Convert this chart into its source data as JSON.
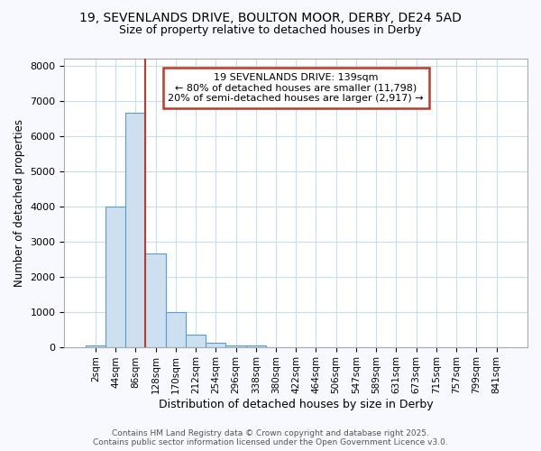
{
  "title_line1": "19, SEVENLANDS DRIVE, BOULTON MOOR, DERBY, DE24 5AD",
  "title_line2": "Size of property relative to detached houses in Derby",
  "xlabel": "Distribution of detached houses by size in Derby",
  "ylabel": "Number of detached properties",
  "bar_labels": [
    "2sqm",
    "44sqm",
    "86sqm",
    "128sqm",
    "170sqm",
    "212sqm",
    "254sqm",
    "296sqm",
    "338sqm",
    "380sqm",
    "422sqm",
    "464sqm",
    "506sqm",
    "547sqm",
    "589sqm",
    "631sqm",
    "673sqm",
    "715sqm",
    "757sqm",
    "799sqm",
    "841sqm"
  ],
  "bar_values": [
    50,
    4000,
    6650,
    2650,
    980,
    340,
    130,
    50,
    50,
    0,
    0,
    0,
    0,
    0,
    0,
    0,
    0,
    0,
    0,
    0,
    0
  ],
  "bar_color": "#cce0f0",
  "bar_edgecolor": "#5b9bd5",
  "vline_x_index": 3,
  "vline_color": "#c0392b",
  "annotation_text": "19 SEVENLANDS DRIVE: 139sqm\n← 80% of detached houses are smaller (11,798)\n20% of semi-detached houses are larger (2,917) →",
  "annotation_box_edgecolor": "#c0392b",
  "annotation_box_facecolor": "#ffffff",
  "ylim": [
    0,
    8200
  ],
  "yticks": [
    0,
    1000,
    2000,
    3000,
    4000,
    5000,
    6000,
    7000,
    8000
  ],
  "footer_line1": "Contains HM Land Registry data © Crown copyright and database right 2025.",
  "footer_line2": "Contains public sector information licensed under the Open Government Licence v3.0.",
  "fig_bg_color": "#f8f8ff",
  "plot_bg_color": "#ffffff",
  "grid_color": "#c8ddf0"
}
